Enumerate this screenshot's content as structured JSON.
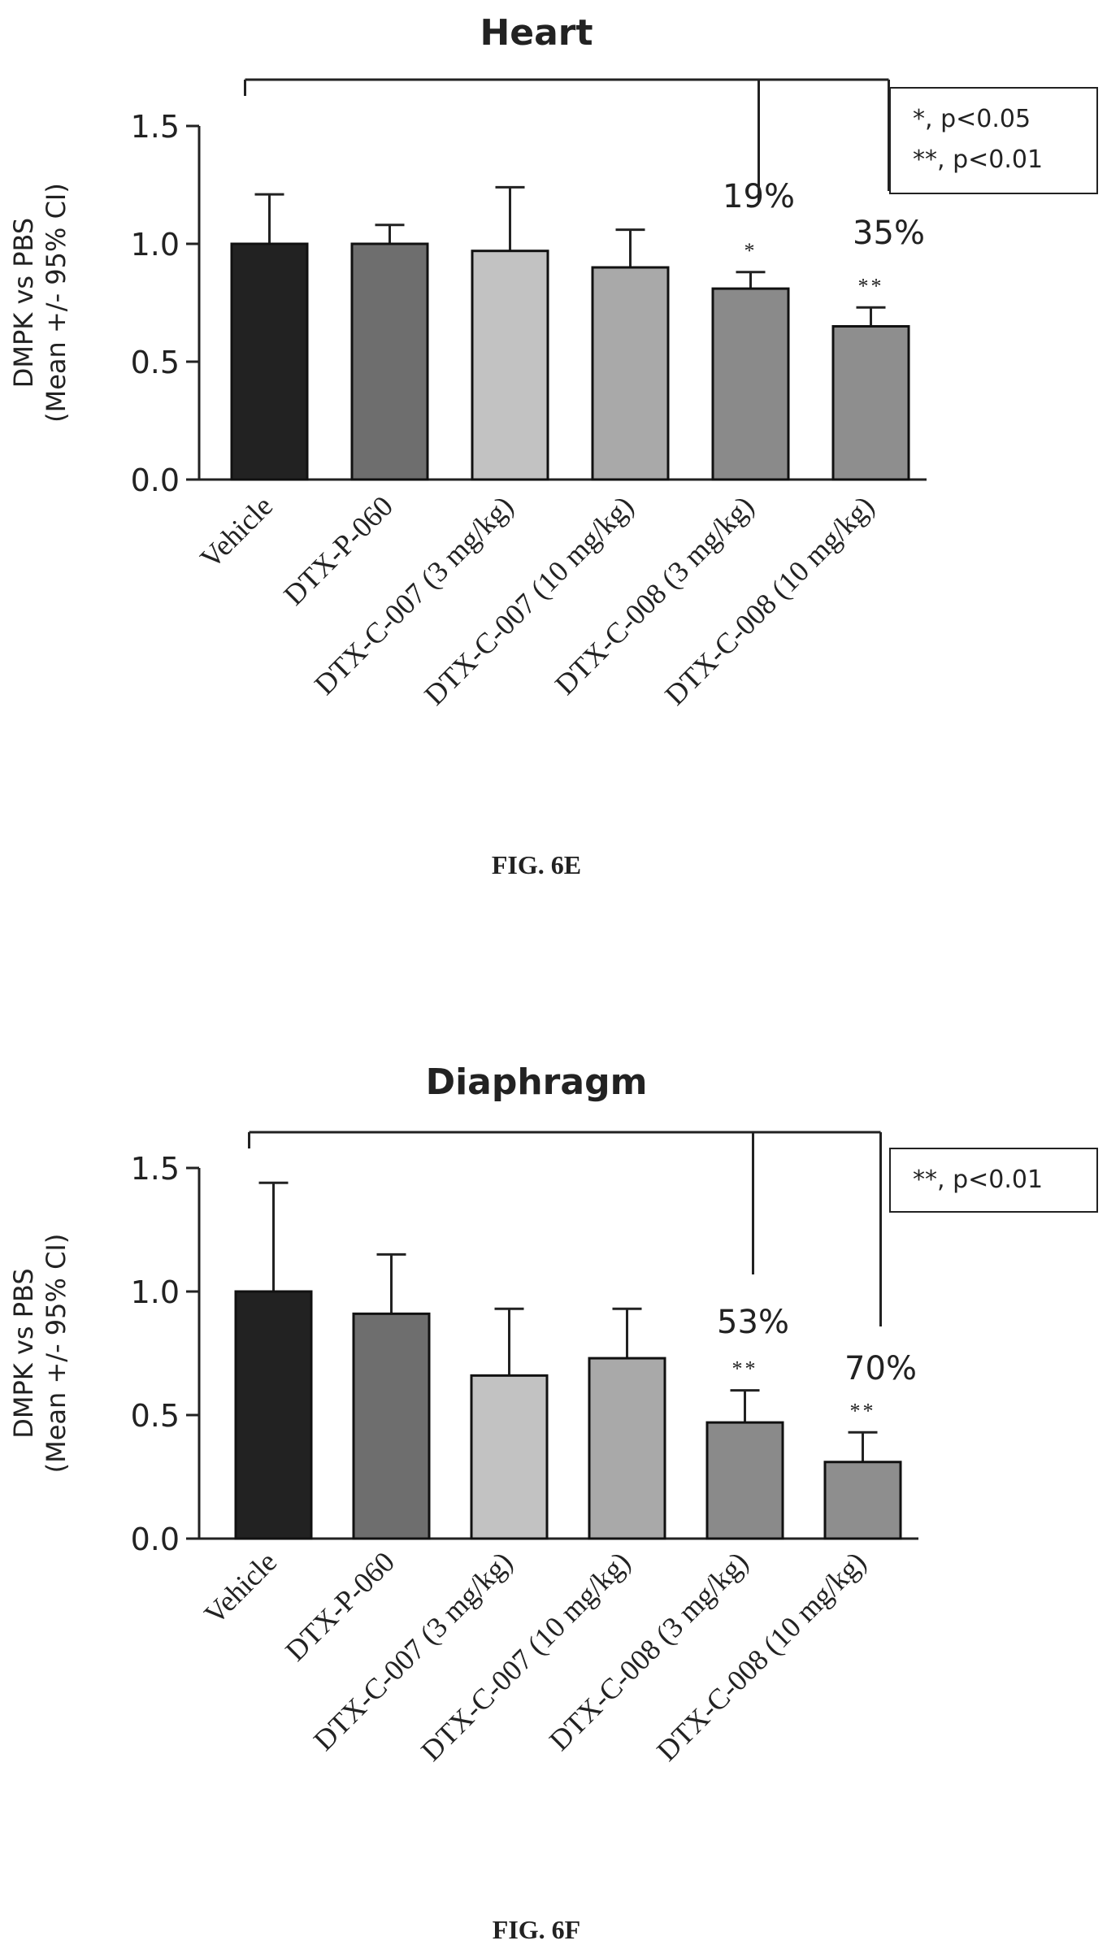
{
  "figures": [
    {
      "caption": "FIG. 6E",
      "legend_lines": [
        "*, p<0.05",
        "**, p<0.01"
      ],
      "percent_labels": [
        "19%",
        "35%"
      ]
    },
    {
      "caption": "FIG. 6F",
      "legend_lines": [
        "**, p<0.01"
      ],
      "percent_labels": [
        "53%",
        "70%"
      ]
    }
  ],
  "colors": {
    "bar_fills": [
      "#222222",
      "#6e6e6e",
      "#c2c2c2",
      "#a9a9a9",
      "#8a8a8a",
      "#8e8e8e"
    ],
    "axis": "#222222",
    "text": "#222222"
  },
  "chart_data": [
    {
      "type": "bar",
      "title": "Heart",
      "xlabel": "",
      "ylabel": "DMPK vs PBS\n(Mean +/- 95% CI)",
      "ylim": [
        0,
        1.5
      ],
      "yticks": [
        "0.0",
        "0.5",
        "1.0",
        "1.5"
      ],
      "categories": [
        "Vehicle",
        "DTX-P-060",
        "DTX-C-007 (3 mg/kg)",
        "DTX-C-007 (10 mg/kg)",
        "DTX-C-008 (3 mg/kg)",
        "DTX-C-008 (10 mg/kg)"
      ],
      "values": [
        1.0,
        1.0,
        0.97,
        0.9,
        0.81,
        0.65
      ],
      "error_upper": [
        1.21,
        1.08,
        1.24,
        1.06,
        0.88,
        0.73
      ],
      "significance": [
        "",
        "",
        "",
        "",
        "*",
        "**"
      ],
      "comparison_bracket": {
        "from": 0,
        "to": [
          4,
          5
        ]
      },
      "legend_position": "top-right"
    },
    {
      "type": "bar",
      "title": "Diaphragm",
      "xlabel": "",
      "ylabel": "DMPK vs PBS\n(Mean +/- 95% CI)",
      "ylim": [
        0,
        1.5
      ],
      "yticks": [
        "0.0",
        "0.5",
        "1.0",
        "1.5"
      ],
      "categories": [
        "Vehicle",
        "DTX-P-060",
        "DTX-C-007 (3 mg/kg)",
        "DTX-C-007 (10 mg/kg)",
        "DTX-C-008 (3 mg/kg)",
        "DTX-C-008 (10 mg/kg)"
      ],
      "values": [
        1.0,
        0.91,
        0.66,
        0.73,
        0.47,
        0.31
      ],
      "error_upper": [
        1.44,
        1.15,
        0.93,
        0.93,
        0.6,
        0.43
      ],
      "significance": [
        "",
        "",
        "",
        "",
        "**",
        "**"
      ],
      "comparison_bracket": {
        "from": 0,
        "to": [
          4,
          5
        ]
      },
      "legend_position": "top-right"
    }
  ]
}
